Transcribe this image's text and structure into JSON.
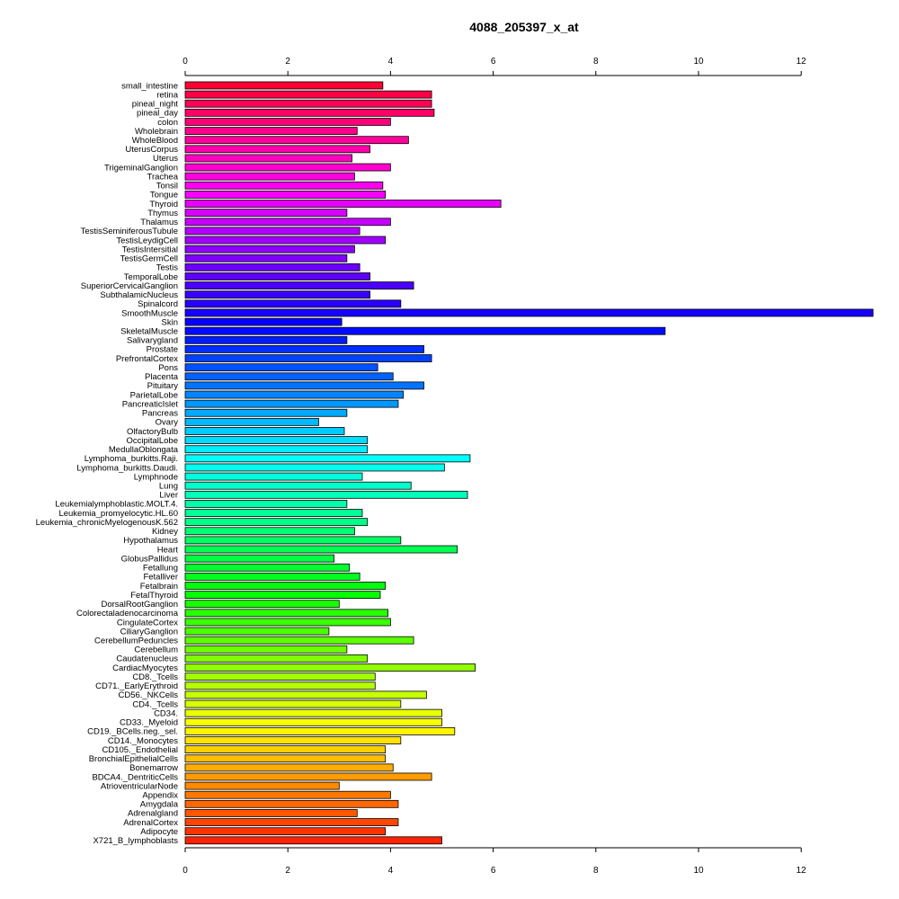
{
  "chart_data": {
    "type": "bar",
    "orientation": "horizontal",
    "title": "4088_205397_x_at",
    "xlabel": "",
    "ylabel": "",
    "xlim": [
      0,
      13.4
    ],
    "xticks": [
      0,
      2,
      4,
      6,
      8,
      10,
      12
    ],
    "grid": false,
    "legend": "none",
    "categories": [
      "small_intestine",
      "retina",
      "pineal_night",
      "pineal_day",
      "colon",
      "Wholebrain",
      "WholeBlood",
      "UterusCorpus",
      "Uterus",
      "TrigeminalGanglion",
      "Trachea",
      "Tonsil",
      "Tongue",
      "Thyroid",
      "Thymus",
      "Thalamus",
      "TestisSeminiferousTubule",
      "TestisLeydigCell",
      "TestisIntersitial",
      "TestisGermCell",
      "Testis",
      "TemporalLobe",
      "SuperiorCervicalGanglion",
      "SubthalamicNucleus",
      "Spinalcord",
      "SmoothMuscle",
      "Skin",
      "SkeletalMuscle",
      "Salivarygland",
      "Prostate",
      "PrefrontalCortex",
      "Pons",
      "Placenta",
      "Pituitary",
      "ParietalLobe",
      "PancreaticIslet",
      "Pancreas",
      "Ovary",
      "OlfactoryBulb",
      "OccipitalLobe",
      "MedullaOblongata",
      "Lymphoma_burkitts.Raji.",
      "Lymphoma_burkitts.Daudi.",
      "Lymphnode",
      "Lung",
      "Liver",
      "Leukemialymphoblastic.MOLT.4.",
      "Leukemia_promyelocytic.HL.60",
      "Leukemia_chronicMyelogenousK.562",
      "Kidney",
      "Hypothalamus",
      "Heart",
      "GlobusPallidus",
      "Fetallung",
      "Fetalliver",
      "Fetalbrain",
      "FetalThyroid",
      "DorsalRootGanglion",
      "Colorectaladenocarcinoma",
      "CingulateCortex",
      "CiliaryGanglion",
      "CerebellumPeduncles",
      "Cerebellum",
      "Caudatenucleus",
      "CardiacMyocytes",
      "CD8._Tcells",
      "CD71._EarlyErythroid",
      "CD56._NKCells",
      "CD4._Tcells",
      "CD34.",
      "CD33._Myeloid",
      "CD19._BCells.neg._sel.",
      "CD14._Monocytes",
      "CD105._Endothelial",
      "BronchialEpithelialCells",
      "Bonemarrow",
      "BDCA4._DentriticCells",
      "AtrioventricularNode",
      "Appendix",
      "Amygdala",
      "Adrenalgland",
      "AdrenalCortex",
      "Adipocyte",
      "X721_B_lymphoblasts"
    ],
    "values": [
      3.85,
      4.8,
      4.8,
      4.85,
      4.0,
      3.35,
      4.35,
      3.6,
      3.25,
      4.0,
      3.3,
      3.85,
      3.9,
      6.15,
      3.15,
      4.0,
      3.4,
      3.9,
      3.3,
      3.15,
      3.4,
      3.6,
      4.45,
      3.6,
      4.2,
      13.4,
      3.05,
      9.35,
      3.15,
      4.65,
      4.8,
      3.75,
      4.05,
      4.65,
      4.25,
      4.15,
      3.15,
      2.6,
      3.1,
      3.55,
      3.55,
      5.55,
      5.05,
      3.45,
      4.4,
      5.5,
      3.15,
      3.45,
      3.55,
      3.3,
      4.2,
      5.3,
      2.9,
      3.2,
      3.4,
      3.9,
      3.8,
      3.0,
      3.95,
      4.0,
      2.8,
      4.45,
      3.15,
      3.55,
      5.65,
      3.7,
      3.7,
      4.7,
      4.2,
      5.0,
      5.0,
      5.25,
      4.2,
      3.9,
      3.9,
      4.05,
      4.8,
      3.0,
      4.0,
      4.15,
      3.35,
      4.15,
      3.9,
      5.0
    ],
    "colors": [
      "#ff0033",
      "#ff0045",
      "#ff0056",
      "#ff0067",
      "#ff0079",
      "#ff008a",
      "#ff009c",
      "#ff00ad",
      "#ff00bf",
      "#ff00d0",
      "#ff00e1",
      "#ff00f3",
      "#f900ff",
      "#e800ff",
      "#d600ff",
      "#c500ff",
      "#b400ff",
      "#a200ff",
      "#9100ff",
      "#8000ff",
      "#6e00ff",
      "#5d00ff",
      "#4b00ff",
      "#3a00ff",
      "#2900ff",
      "#1700ff",
      "#0600ff",
      "#000bff",
      "#001dff",
      "#002eff",
      "#0040ff",
      "#0051ff",
      "#0062ff",
      "#0074ff",
      "#0085ff",
      "#0097ff",
      "#00a8ff",
      "#00b9ff",
      "#00cbff",
      "#00dcff",
      "#00eeff",
      "#00ffff",
      "#00ffee",
      "#00ffdd",
      "#00ffcb",
      "#00ffba",
      "#00ffa8",
      "#00ff97",
      "#00ff86",
      "#00ff74",
      "#00ff63",
      "#00ff52",
      "#00ff40",
      "#00ff2f",
      "#00ff1d",
      "#00ff0c",
      "#06ff00",
      "#17ff00",
      "#28ff00",
      "#3aff00",
      "#4bff00",
      "#5dff00",
      "#6eff00",
      "#80ff00",
      "#91ff00",
      "#a2ff00",
      "#b4ff00",
      "#c5ff00",
      "#d6ff00",
      "#e8ff00",
      "#f9ff00",
      "#fff300",
      "#ffe100",
      "#ffd000",
      "#ffbf00",
      "#ffad00",
      "#ff9c00",
      "#ff8a00",
      "#ff7900",
      "#ff6700",
      "#ff5600",
      "#ff4500",
      "#ff3300",
      "#ff2200"
    ]
  }
}
